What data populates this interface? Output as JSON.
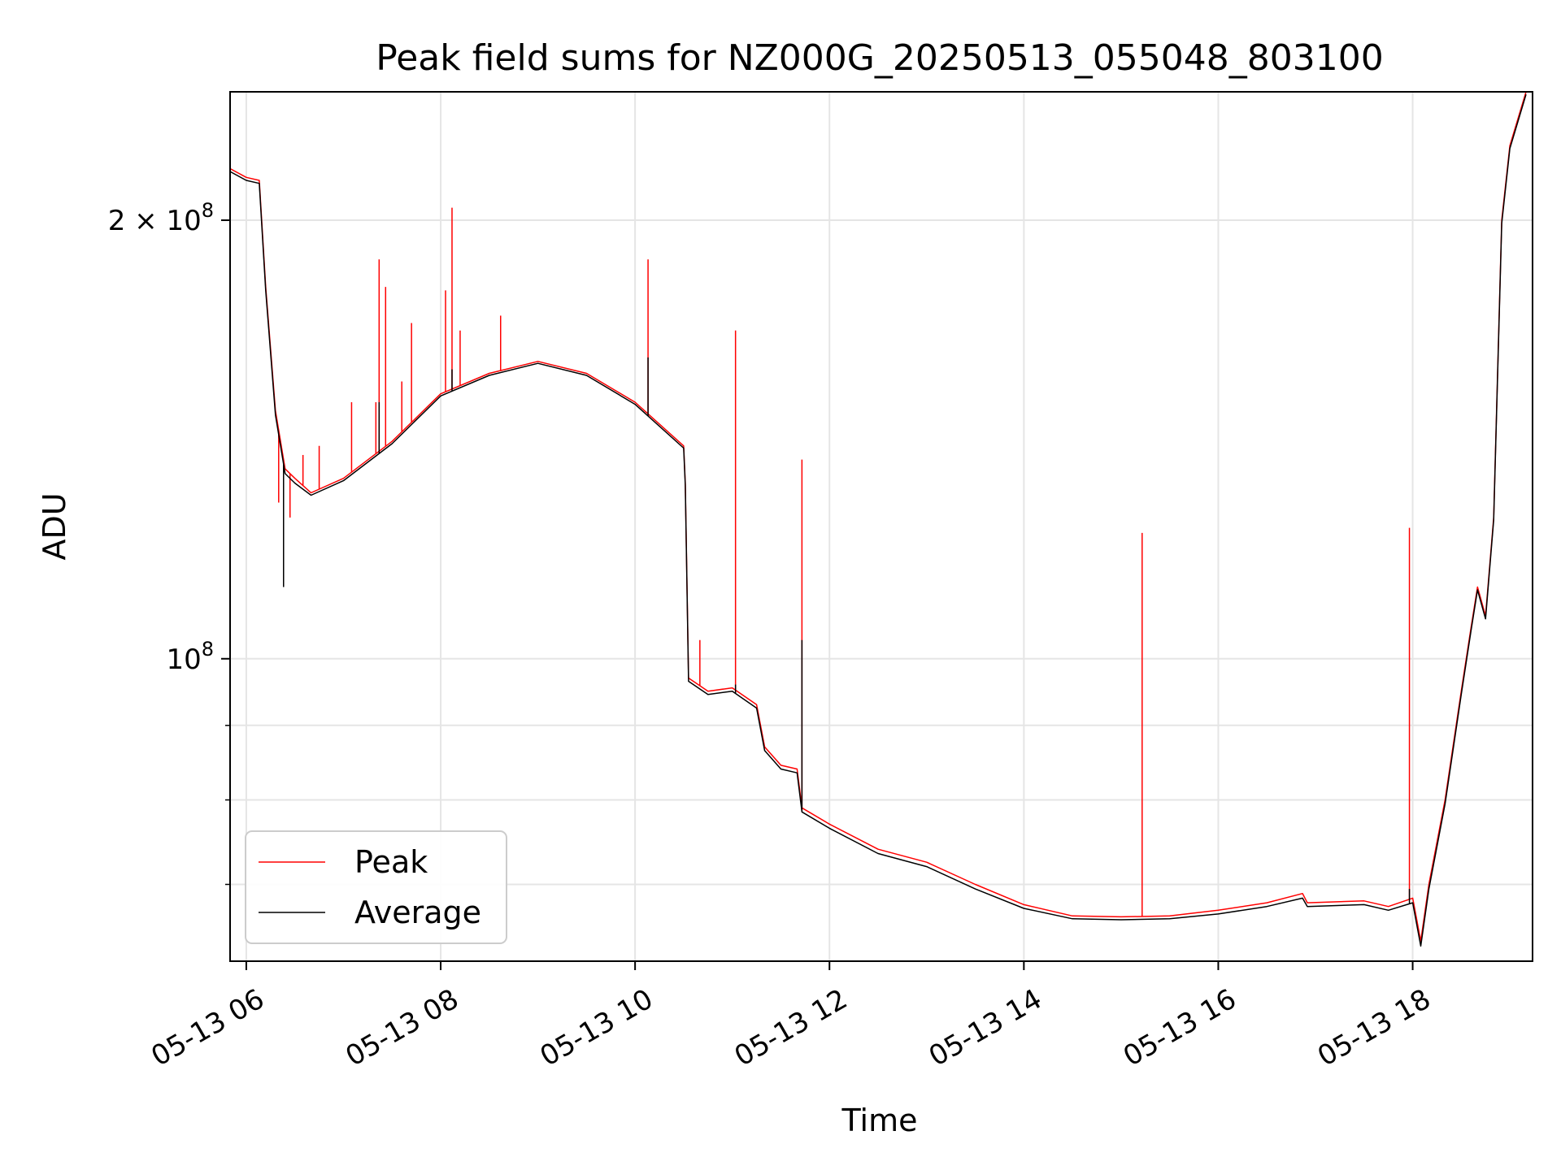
{
  "chart_data": {
    "type": "line",
    "title": "Peak field sums for NZ000G_20250513_055048_803100",
    "xlabel": "Time",
    "ylabel": "ADU",
    "y_scale": "log",
    "ylim": [
      62000000,
      245000000
    ],
    "xlim": [
      "2025-05-13 05:50",
      "2025-05-13 19:14"
    ],
    "grid": true,
    "legend_position": "lower-left",
    "x_ticks": [
      {
        "t": "2025-05-13 06:00",
        "label": "05-13 06"
      },
      {
        "t": "2025-05-13 08:00",
        "label": "05-13 08"
      },
      {
        "t": "2025-05-13 10:00",
        "label": "05-13 10"
      },
      {
        "t": "2025-05-13 12:00",
        "label": "05-13 12"
      },
      {
        "t": "2025-05-13 14:00",
        "label": "05-13 14"
      },
      {
        "t": "2025-05-13 16:00",
        "label": "05-13 16"
      },
      {
        "t": "2025-05-13 18:00",
        "label": "05-13 18"
      }
    ],
    "y_ticks": [
      {
        "value": 100000000,
        "base": "10",
        "exp": "8",
        "coef": ""
      },
      {
        "value": 200000000,
        "base": "10",
        "exp": "8",
        "coef": "2 × "
      }
    ],
    "y_minor_ticks": [
      70000000,
      80000000,
      90000000
    ],
    "series": [
      {
        "name": "Peak",
        "color": "#ff0000",
        "baseline": [
          [
            "2025-05-13 05:50",
            217000000
          ],
          [
            "2025-05-13 06:00",
            214000000
          ],
          [
            "2025-05-13 06:08",
            213000000
          ],
          [
            "2025-05-13 06:12",
            180000000
          ],
          [
            "2025-05-13 06:18",
            148000000
          ],
          [
            "2025-05-13 06:24",
            135000000
          ],
          [
            "2025-05-13 06:30",
            133000000
          ],
          [
            "2025-05-13 06:40",
            130000000
          ],
          [
            "2025-05-13 07:00",
            133000000
          ],
          [
            "2025-05-13 07:30",
            141000000
          ],
          [
            "2025-05-13 08:00",
            152000000
          ],
          [
            "2025-05-13 08:30",
            157000000
          ],
          [
            "2025-05-13 09:00",
            160000000
          ],
          [
            "2025-05-13 09:30",
            157000000
          ],
          [
            "2025-05-13 10:00",
            150000000
          ],
          [
            "2025-05-13 10:30",
            140000000
          ],
          [
            "2025-05-13 10:31",
            132000000
          ],
          [
            "2025-05-13 10:33",
            97000000
          ],
          [
            "2025-05-13 10:45",
            95000000
          ],
          [
            "2025-05-13 11:00",
            95500000
          ],
          [
            "2025-05-13 11:15",
            93000000
          ],
          [
            "2025-05-13 11:20",
            87000000
          ],
          [
            "2025-05-13 11:30",
            84500000
          ],
          [
            "2025-05-13 11:40",
            84000000
          ],
          [
            "2025-05-13 11:43",
            79000000
          ],
          [
            "2025-05-13 12:00",
            77000000
          ],
          [
            "2025-05-13 12:30",
            74000000
          ],
          [
            "2025-05-13 13:00",
            72500000
          ],
          [
            "2025-05-13 13:30",
            70000000
          ],
          [
            "2025-05-13 14:00",
            67800000
          ],
          [
            "2025-05-13 14:30",
            66600000
          ],
          [
            "2025-05-13 15:00",
            66500000
          ],
          [
            "2025-05-13 15:30",
            66600000
          ],
          [
            "2025-05-13 16:00",
            67200000
          ],
          [
            "2025-05-13 16:30",
            68000000
          ],
          [
            "2025-05-13 16:52",
            69000000
          ],
          [
            "2025-05-13 16:55",
            68000000
          ],
          [
            "2025-05-13 17:30",
            68200000
          ],
          [
            "2025-05-13 17:45",
            67600000
          ],
          [
            "2025-05-13 18:00",
            68500000
          ],
          [
            "2025-05-13 18:05",
            64000000
          ],
          [
            "2025-05-13 18:10",
            70000000
          ],
          [
            "2025-05-13 18:20",
            80000000
          ],
          [
            "2025-05-13 18:30",
            95000000
          ],
          [
            "2025-05-13 18:36",
            105000000
          ],
          [
            "2025-05-13 18:40",
            112000000
          ],
          [
            "2025-05-13 18:45",
            107000000
          ],
          [
            "2025-05-13 18:50",
            125000000
          ],
          [
            "2025-05-13 18:55",
            200000000
          ],
          [
            "2025-05-13 19:00",
            225000000
          ],
          [
            "2025-05-13 19:10",
            245000000
          ]
        ],
        "spikes": [
          [
            "2025-05-13 06:20",
            128000000
          ],
          [
            "2025-05-13 06:23",
            127000000
          ],
          [
            "2025-05-13 06:27",
            125000000
          ],
          [
            "2025-05-13 06:35",
            138000000
          ],
          [
            "2025-05-13 06:45",
            140000000
          ],
          [
            "2025-05-13 07:05",
            150000000
          ],
          [
            "2025-05-13 07:20",
            150000000
          ],
          [
            "2025-05-13 07:22",
            188000000
          ],
          [
            "2025-05-13 07:26",
            180000000
          ],
          [
            "2025-05-13 07:36",
            155000000
          ],
          [
            "2025-05-13 07:42",
            170000000
          ],
          [
            "2025-05-13 08:03",
            179000000
          ],
          [
            "2025-05-13 08:07",
            204000000
          ],
          [
            "2025-05-13 08:12",
            168000000
          ],
          [
            "2025-05-13 08:37",
            172000000
          ],
          [
            "2025-05-13 10:08",
            188000000
          ],
          [
            "2025-05-13 10:40",
            103000000
          ],
          [
            "2025-05-13 11:02",
            168000000
          ],
          [
            "2025-05-13 11:43",
            137000000
          ],
          [
            "2025-05-13 15:13",
            122000000
          ],
          [
            "2025-05-13 17:58",
            123000000
          ]
        ]
      },
      {
        "name": "Average",
        "color": "#000000",
        "baseline": [
          [
            "2025-05-13 05:50",
            216000000
          ],
          [
            "2025-05-13 06:00",
            213000000
          ],
          [
            "2025-05-13 06:08",
            212000000
          ],
          [
            "2025-05-13 06:12",
            179000000
          ],
          [
            "2025-05-13 06:18",
            147000000
          ],
          [
            "2025-05-13 06:24",
            134000000
          ],
          [
            "2025-05-13 06:30",
            132000000
          ],
          [
            "2025-05-13 06:40",
            129500000
          ],
          [
            "2025-05-13 07:00",
            132500000
          ],
          [
            "2025-05-13 07:30",
            140500000
          ],
          [
            "2025-05-13 08:00",
            151500000
          ],
          [
            "2025-05-13 08:30",
            156500000
          ],
          [
            "2025-05-13 09:00",
            159500000
          ],
          [
            "2025-05-13 09:30",
            156500000
          ],
          [
            "2025-05-13 10:00",
            149500000
          ],
          [
            "2025-05-13 10:30",
            139500000
          ],
          [
            "2025-05-13 10:31",
            131500000
          ],
          [
            "2025-05-13 10:33",
            96500000
          ],
          [
            "2025-05-13 10:45",
            94500000
          ],
          [
            "2025-05-13 11:00",
            95000000
          ],
          [
            "2025-05-13 11:15",
            92500000
          ],
          [
            "2025-05-13 11:20",
            86500000
          ],
          [
            "2025-05-13 11:30",
            84000000
          ],
          [
            "2025-05-13 11:40",
            83500000
          ],
          [
            "2025-05-13 11:43",
            78500000
          ],
          [
            "2025-05-13 12:00",
            76500000
          ],
          [
            "2025-05-13 12:30",
            73500000
          ],
          [
            "2025-05-13 13:00",
            72000000
          ],
          [
            "2025-05-13 13:30",
            69500000
          ],
          [
            "2025-05-13 14:00",
            67400000
          ],
          [
            "2025-05-13 14:30",
            66300000
          ],
          [
            "2025-05-13 15:00",
            66200000
          ],
          [
            "2025-05-13 15:30",
            66300000
          ],
          [
            "2025-05-13 16:00",
            66800000
          ],
          [
            "2025-05-13 16:30",
            67600000
          ],
          [
            "2025-05-13 16:52",
            68500000
          ],
          [
            "2025-05-13 16:55",
            67600000
          ],
          [
            "2025-05-13 17:30",
            67800000
          ],
          [
            "2025-05-13 17:45",
            67200000
          ],
          [
            "2025-05-13 18:00",
            68000000
          ],
          [
            "2025-05-13 18:05",
            63500000
          ],
          [
            "2025-05-13 18:10",
            69500000
          ],
          [
            "2025-05-13 18:20",
            79500000
          ],
          [
            "2025-05-13 18:30",
            94500000
          ],
          [
            "2025-05-13 18:36",
            104500000
          ],
          [
            "2025-05-13 18:40",
            111500000
          ],
          [
            "2025-05-13 18:45",
            106500000
          ],
          [
            "2025-05-13 18:50",
            124500000
          ],
          [
            "2025-05-13 18:55",
            199000000
          ],
          [
            "2025-05-13 19:00",
            224000000
          ],
          [
            "2025-05-13 19:10",
            244000000
          ]
        ],
        "spikes": [
          [
            "2025-05-13 06:23",
            112000000
          ],
          [
            "2025-05-13 06:27",
            133000000
          ],
          [
            "2025-05-13 07:22",
            150000000
          ],
          [
            "2025-05-13 08:07",
            158000000
          ],
          [
            "2025-05-13 10:08",
            161000000
          ],
          [
            "2025-05-13 11:02",
            96000000
          ],
          [
            "2025-05-13 11:43",
            103000000
          ],
          [
            "2025-05-13 17:58",
            69500000
          ]
        ]
      }
    ]
  }
}
